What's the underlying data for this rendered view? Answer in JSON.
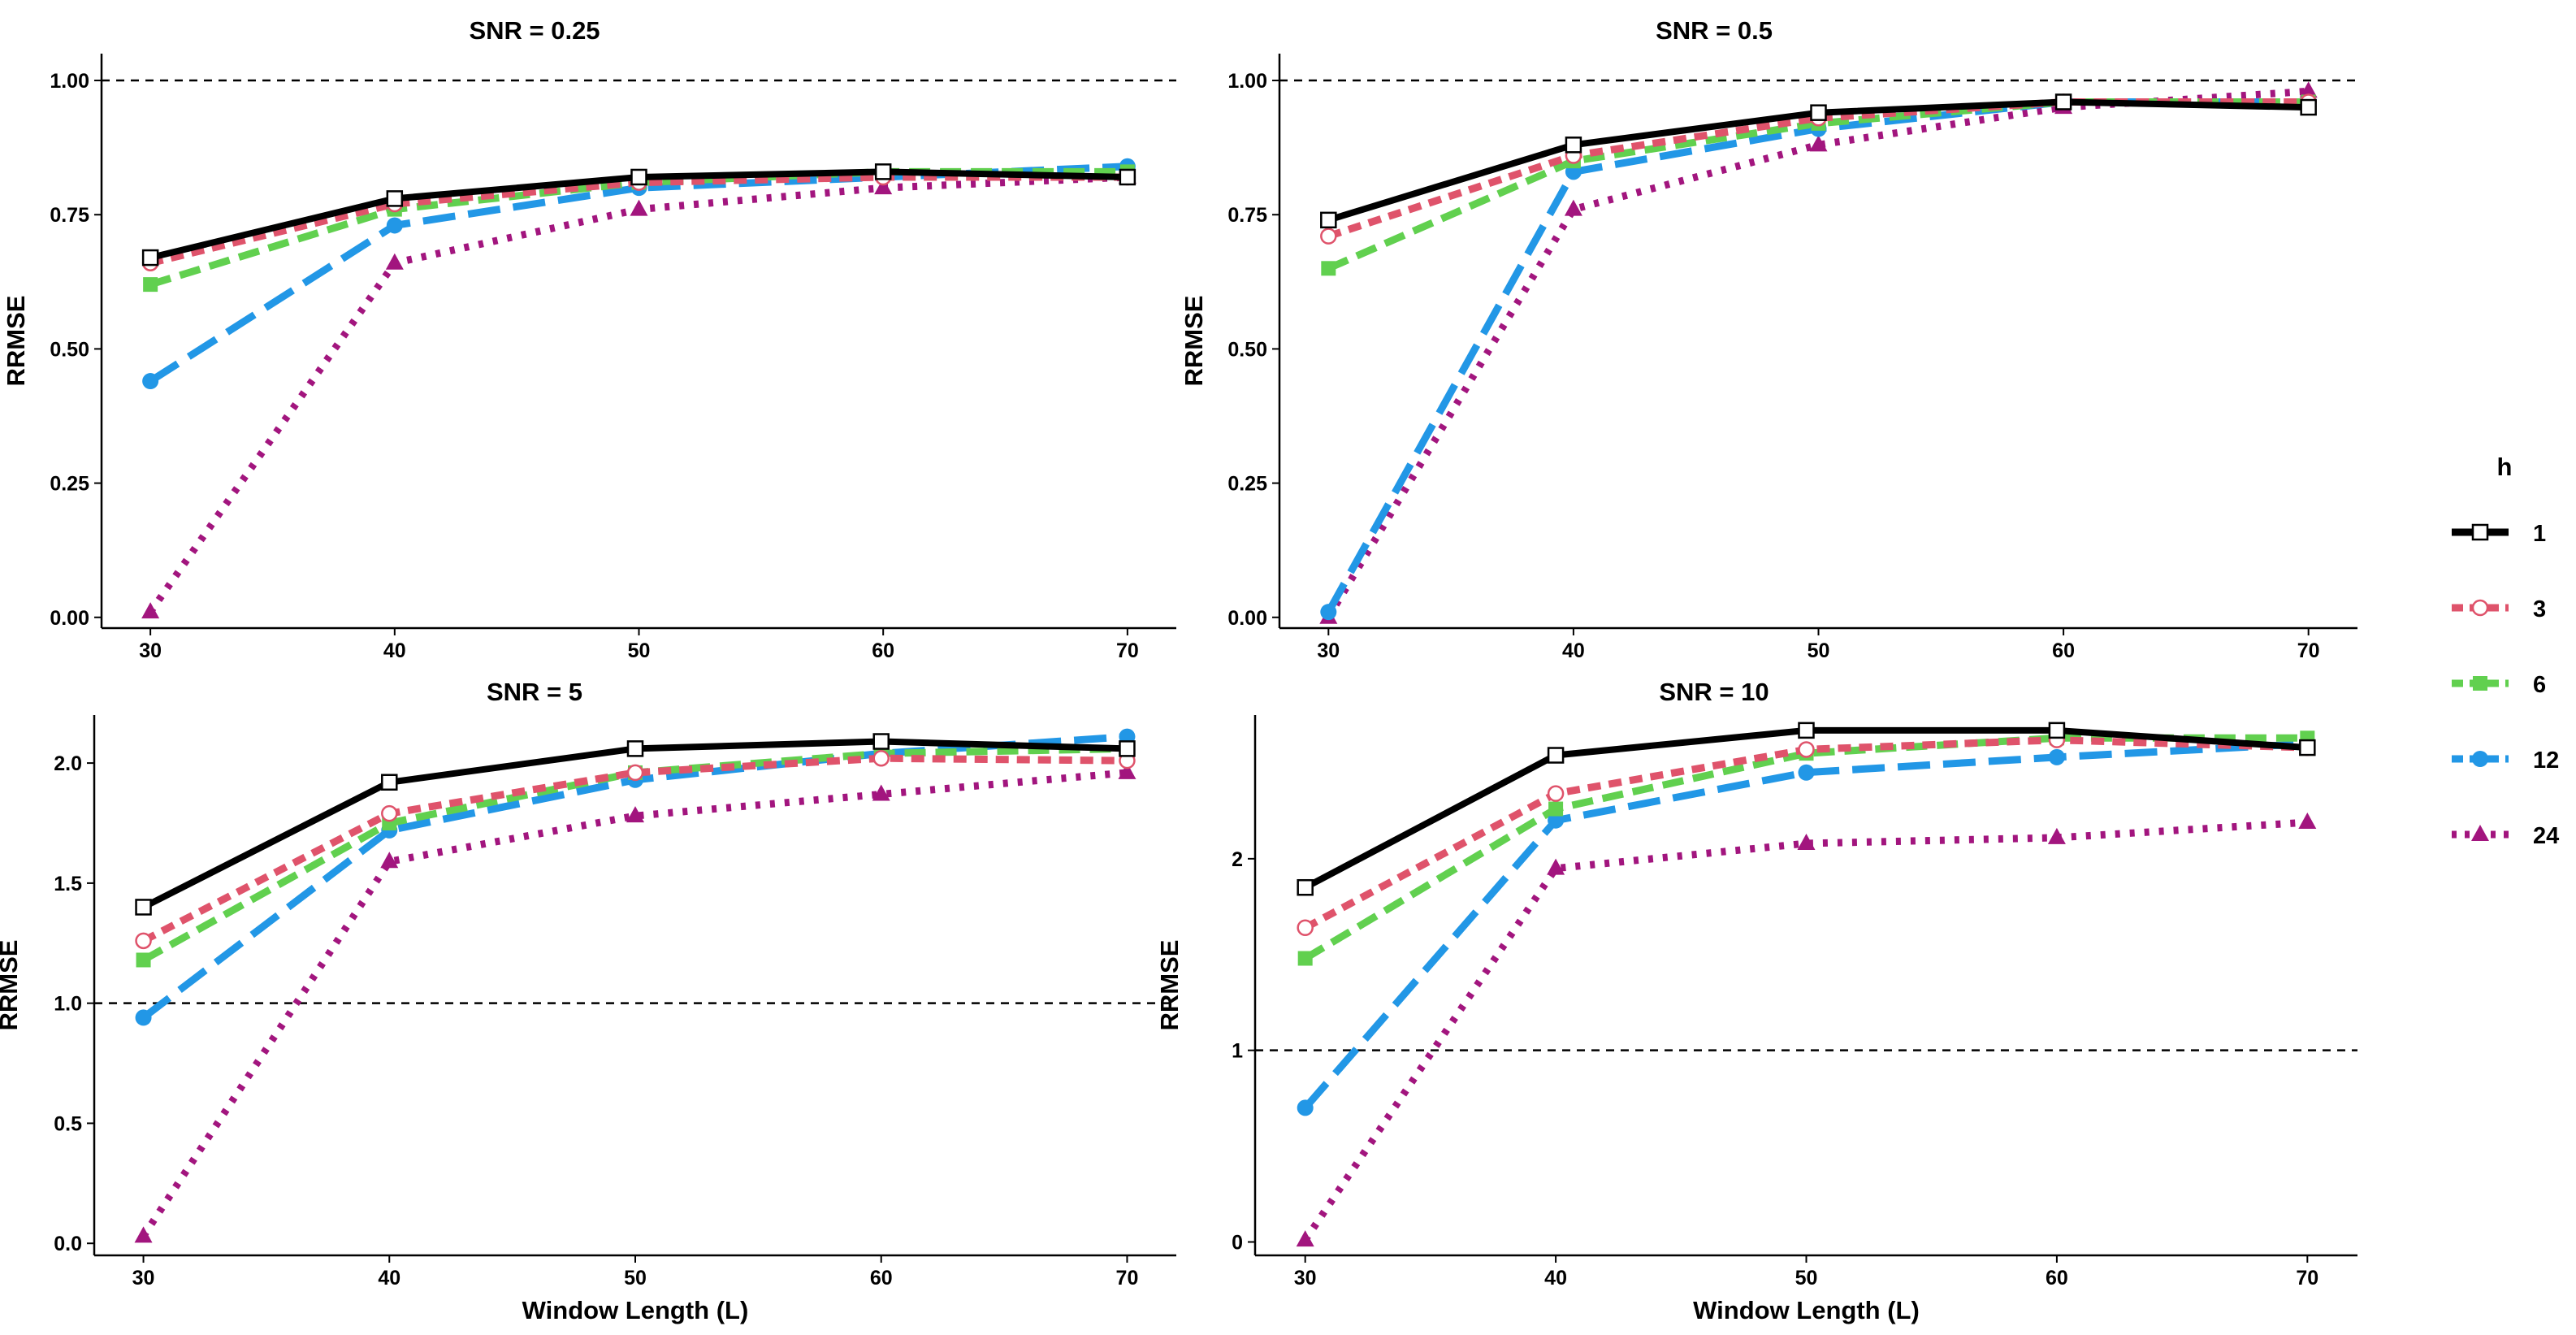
{
  "chart_data": [
    {
      "type": "line",
      "title": "SNR = 0.25",
      "xlabel": "",
      "ylabel": "RRMSE",
      "x": [
        30,
        40,
        50,
        60,
        70
      ],
      "xlim": [
        28,
        72
      ],
      "ylim": [
        -0.02,
        1.05
      ],
      "yticks": [
        0.0,
        0.25,
        0.5,
        0.75,
        1.0
      ],
      "ytick_labels": [
        "0.00",
        "0.25",
        "0.50",
        "0.75",
        "1.00"
      ],
      "xtick_labels": [
        "30",
        "40",
        "50",
        "60",
        "70"
      ],
      "reference_line": 1.0,
      "series": [
        {
          "name": "1",
          "values": [
            0.67,
            0.78,
            0.82,
            0.83,
            0.82
          ]
        },
        {
          "name": "3",
          "values": [
            0.66,
            0.77,
            0.81,
            0.82,
            0.82
          ]
        },
        {
          "name": "6",
          "values": [
            0.62,
            0.76,
            0.81,
            0.83,
            0.83
          ]
        },
        {
          "name": "12",
          "values": [
            0.44,
            0.73,
            0.8,
            0.82,
            0.84
          ]
        },
        {
          "name": "24",
          "values": [
            0.01,
            0.66,
            0.76,
            0.8,
            0.82
          ]
        }
      ]
    },
    {
      "type": "line",
      "title": "SNR = 0.5",
      "xlabel": "",
      "ylabel": "RRMSE",
      "x": [
        30,
        40,
        50,
        60,
        70
      ],
      "xlim": [
        28,
        72
      ],
      "ylim": [
        -0.02,
        1.05
      ],
      "yticks": [
        0.0,
        0.25,
        0.5,
        0.75,
        1.0
      ],
      "ytick_labels": [
        "0.00",
        "0.25",
        "0.50",
        "0.75",
        "1.00"
      ],
      "xtick_labels": [
        "30",
        "40",
        "50",
        "60",
        "70"
      ],
      "reference_line": 1.0,
      "series": [
        {
          "name": "1",
          "values": [
            0.74,
            0.88,
            0.94,
            0.96,
            0.95
          ]
        },
        {
          "name": "3",
          "values": [
            0.71,
            0.86,
            0.93,
            0.96,
            0.96
          ]
        },
        {
          "name": "6",
          "values": [
            0.65,
            0.85,
            0.92,
            0.96,
            0.96
          ]
        },
        {
          "name": "12",
          "values": [
            0.01,
            0.83,
            0.91,
            0.96,
            0.96
          ]
        },
        {
          "name": "24",
          "values": [
            0.0,
            0.76,
            0.88,
            0.95,
            0.98
          ]
        }
      ]
    },
    {
      "type": "line",
      "title": "SNR = 5",
      "xlabel": "Window Length (L)",
      "ylabel": "RRMSE",
      "x": [
        30,
        40,
        50,
        60,
        70
      ],
      "xlim": [
        28,
        72
      ],
      "ylim": [
        -0.05,
        2.2
      ],
      "yticks": [
        0.0,
        0.5,
        1.0,
        1.5,
        2.0
      ],
      "ytick_labels": [
        "0.0",
        "0.5",
        "1.0",
        "1.5",
        "2.0"
      ],
      "xtick_labels": [
        "30",
        "40",
        "50",
        "60",
        "70"
      ],
      "reference_line": 1.0,
      "series": [
        {
          "name": "1",
          "values": [
            1.4,
            1.92,
            2.06,
            2.09,
            2.06
          ]
        },
        {
          "name": "3",
          "values": [
            1.26,
            1.79,
            1.96,
            2.02,
            2.01
          ]
        },
        {
          "name": "6",
          "values": [
            1.18,
            1.75,
            1.96,
            2.04,
            2.06
          ]
        },
        {
          "name": "12",
          "values": [
            0.94,
            1.72,
            1.93,
            2.04,
            2.11
          ]
        },
        {
          "name": "24",
          "values": [
            0.03,
            1.59,
            1.78,
            1.87,
            1.96
          ]
        }
      ]
    },
    {
      "type": "line",
      "title": "SNR = 10",
      "xlabel": "Window Length (L)",
      "ylabel": "RRMSE",
      "x": [
        30,
        40,
        50,
        60,
        70
      ],
      "xlim": [
        28,
        72
      ],
      "ylim": [
        -0.07,
        2.75
      ],
      "yticks": [
        0,
        1,
        2
      ],
      "ytick_labels": [
        "0",
        "1",
        "2"
      ],
      "xtick_labels": [
        "30",
        "40",
        "50",
        "60",
        "70"
      ],
      "reference_line": 1.0,
      "series": [
        {
          "name": "1",
          "values": [
            1.85,
            2.54,
            2.67,
            2.67,
            2.58
          ]
        },
        {
          "name": "3",
          "values": [
            1.64,
            2.34,
            2.57,
            2.62,
            2.58
          ]
        },
        {
          "name": "6",
          "values": [
            1.48,
            2.26,
            2.55,
            2.63,
            2.63
          ]
        },
        {
          "name": "12",
          "values": [
            0.7,
            2.2,
            2.45,
            2.53,
            2.6
          ]
        },
        {
          "name": "24",
          "values": [
            0.01,
            1.95,
            2.08,
            2.11,
            2.19
          ]
        }
      ]
    }
  ],
  "legend": {
    "title": "h",
    "items": [
      {
        "label": "1",
        "color": "#000000",
        "dash": "solid",
        "marker": "open-square"
      },
      {
        "label": "3",
        "color": "#DF536B",
        "dash": "dashed-short",
        "marker": "open-circle"
      },
      {
        "label": "6",
        "color": "#61D04F",
        "dash": "dashed",
        "marker": "filled-square"
      },
      {
        "label": "12",
        "color": "#2297E6",
        "dash": "dashed-long",
        "marker": "filled-circle"
      },
      {
        "label": "24",
        "color": "#A2157E",
        "dash": "dotted",
        "marker": "filled-triangle"
      }
    ]
  }
}
